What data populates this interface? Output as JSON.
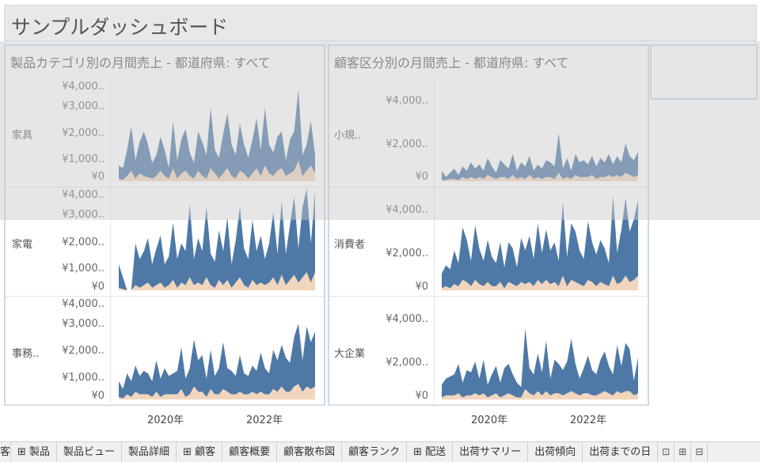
{
  "dashboard": {
    "title": "サンプルダッシュボード"
  },
  "left_panel": {
    "title": "製品カテゴリ別の月間売上 - 都道府県: すべて",
    "rows": [
      {
        "label": "家具",
        "ticks": [
          "¥4,000..",
          "¥3,000..",
          "¥2,000..",
          "¥1,000..",
          "¥0"
        ]
      },
      {
        "label": "家電",
        "ticks": [
          "¥4,000..",
          "¥3,000..",
          "¥2,000..",
          "¥1,000..",
          "¥0"
        ]
      },
      {
        "label": "事務..",
        "ticks": [
          "¥4,000..",
          "¥3,000..",
          "¥2,000..",
          "¥1,000..",
          "¥0"
        ]
      }
    ],
    "x_ticks": [
      "2020年",
      "2022年"
    ]
  },
  "right_panel": {
    "title": "顧客区分別の月間売上 - 都道府県: すべて",
    "rows": [
      {
        "label": "小規..",
        "ticks": [
          "¥4,000..",
          "¥2,000..",
          "¥0"
        ]
      },
      {
        "label": "消費者",
        "ticks": [
          "¥4,000..",
          "¥2,000..",
          "¥0"
        ]
      },
      {
        "label": "大企業",
        "ticks": [
          "¥4,000..",
          "¥2,000..",
          "¥0"
        ]
      }
    ],
    "x_ticks": [
      "2020年",
      "2022年"
    ]
  },
  "colors": {
    "area_blue": "#4e79a7",
    "area_peach": "#f1d5bd",
    "border": "#c9dbe8"
  },
  "tabs": [
    {
      "label": "客",
      "icon": ""
    },
    {
      "label": "製品",
      "icon": "⊞"
    },
    {
      "label": "製品ビュー",
      "icon": ""
    },
    {
      "label": "製品詳細",
      "icon": ""
    },
    {
      "label": "顧客",
      "icon": "⊞"
    },
    {
      "label": "顧客概要",
      "icon": ""
    },
    {
      "label": "顧客散布図",
      "icon": ""
    },
    {
      "label": "顧客ランク",
      "icon": ""
    },
    {
      "label": "配送",
      "icon": "⊞"
    },
    {
      "label": "出荷サマリー",
      "icon": ""
    },
    {
      "label": "出荷傾向",
      "icon": ""
    },
    {
      "label": "出荷までの日",
      "icon": ""
    }
  ],
  "tab_icons": [
    "new-worksheet-icon",
    "new-dashboard-icon",
    "new-story-icon"
  ],
  "chart_data": [
    {
      "type": "area",
      "title": "製品カテゴリ別の月間売上 - 都道府県: すべて",
      "x": [
        "2019-01",
        "2019-02",
        "2019-03",
        "2019-04",
        "2019-05",
        "2019-06",
        "2019-07",
        "2019-08",
        "2019-09",
        "2019-10",
        "2019-11",
        "2019-12",
        "2020-01",
        "2020-02",
        "2020-03",
        "2020-04",
        "2020-05",
        "2020-06",
        "2020-07",
        "2020-08",
        "2020-09",
        "2020-10",
        "2020-11",
        "2020-12",
        "2021-01",
        "2021-02",
        "2021-03",
        "2021-04",
        "2021-05",
        "2021-06",
        "2021-07",
        "2021-08",
        "2021-09",
        "2021-10",
        "2021-11",
        "2021-12",
        "2022-01",
        "2022-02",
        "2022-03",
        "2022-04",
        "2022-05",
        "2022-06",
        "2022-07",
        "2022-08",
        "2022-09",
        "2022-10",
        "2022-11",
        "2022-12"
      ],
      "panels": [
        {
          "name": "家具",
          "series": [
            {
              "name": "",
              "values": [
                600,
                500,
                1200,
                2100,
                800,
                1500,
                1900,
                1400,
                700,
                1000,
                1700,
                1200,
                500,
                2300,
                800,
                1600,
                2000,
                1100,
                700,
                1900,
                1500,
                1000,
                2800,
                1200,
                900,
                1800,
                2600,
                1400,
                1000,
                2200,
                1400,
                900,
                1600,
                2400,
                1200,
                2800,
                1400,
                1100,
                1700,
                1900,
                800,
                1600,
                1900,
                3500,
                1000,
                1400,
                2300,
                1000
              ]
            },
            {
              "name": "",
              "values": [
                100,
                50,
                200,
                400,
                100,
                300,
                200,
                150,
                100,
                200,
                400,
                200,
                100,
                500,
                100,
                300,
                400,
                200,
                100,
                400,
                200,
                100,
                500,
                300,
                100,
                300,
                500,
                200,
                100,
                400,
                300,
                100,
                300,
                500,
                200,
                600,
                300,
                200,
                400,
                500,
                200,
                300,
                400,
                800,
                200,
                400,
                600,
                300
              ]
            }
          ]
        },
        {
          "name": "家電",
          "series": [
            {
              "name": "",
              "values": [
                1000,
                500,
                0,
                0,
                1800,
                1200,
                1500,
                2000,
                1000,
                1600,
                2100,
                1000,
                1300,
                2600,
                1200,
                1800,
                1500,
                3300,
                1200,
                2000,
                1500,
                3200,
                1400,
                1100,
                2300,
                1500,
                2800,
                1000,
                1900,
                3200,
                1600,
                1200,
                2700,
                1500,
                2100,
                1200,
                1800,
                3000,
                1400,
                3400,
                1400,
                2500,
                3600,
                1600,
                3200,
                3900,
                1800,
                3800
              ]
            },
            {
              "name": "",
              "values": [
                100,
                50,
                0,
                0,
                200,
                100,
                200,
                300,
                100,
                200,
                300,
                100,
                200,
                400,
                100,
                300,
                200,
                500,
                200,
                300,
                200,
                500,
                200,
                100,
                400,
                200,
                400,
                100,
                300,
                500,
                200,
                100,
                400,
                200,
                300,
                200,
                300,
                500,
                200,
                600,
                200,
                400,
                600,
                300,
                500,
                700,
                300,
                700
              ]
            }
          ]
        },
        {
          "name": "事務..",
          "series": [
            {
              "name": "",
              "values": [
                700,
                400,
                1000,
                700,
                1300,
                900,
                1100,
                1000,
                700,
                1500,
                800,
                1200,
                900,
                1000,
                1100,
                2000,
                800,
                1200,
                2300,
                1500,
                1700,
                800,
                1900,
                900,
                1200,
                2200,
                1200,
                1100,
                900,
                1700,
                1000,
                900,
                1300,
                1100,
                1800,
                1200,
                1000,
                1900,
                1500,
                2100,
                1600,
                1400,
                2400,
                2900,
                1500,
                2800,
                2200,
                2600
              ]
            },
            {
              "name": "",
              "values": [
                100,
                50,
                200,
                100,
                300,
                200,
                200,
                200,
                100,
                300,
                100,
                200,
                200,
                200,
                200,
                400,
                100,
                200,
                500,
                300,
                300,
                100,
                400,
                200,
                200,
                400,
                300,
                200,
                200,
                300,
                200,
                200,
                300,
                200,
                300,
                200,
                200,
                400,
                300,
                500,
                300,
                300,
                500,
                600,
                300,
                500,
                400,
                500
              ]
            }
          ]
        }
      ]
    },
    {
      "type": "area",
      "title": "顧客区分別の月間売上 - 都道府県: すべて",
      "x": [
        "2019-01",
        "2019-02",
        "2019-03",
        "2019-04",
        "2019-05",
        "2019-06",
        "2019-07",
        "2019-08",
        "2019-09",
        "2019-10",
        "2019-11",
        "2019-12",
        "2020-01",
        "2020-02",
        "2020-03",
        "2020-04",
        "2020-05",
        "2020-06",
        "2020-07",
        "2020-08",
        "2020-09",
        "2020-10",
        "2020-11",
        "2020-12",
        "2021-01",
        "2021-02",
        "2021-03",
        "2021-04",
        "2021-05",
        "2021-06",
        "2021-07",
        "2021-08",
        "2021-09",
        "2021-10",
        "2021-11",
        "2021-12",
        "2022-01",
        "2022-02",
        "2022-03",
        "2022-04",
        "2022-05",
        "2022-06",
        "2022-07",
        "2022-08",
        "2022-09",
        "2022-10",
        "2022-11",
        "2022-12"
      ],
      "panels": [
        {
          "name": "小規..",
          "series": [
            {
              "name": "",
              "values": [
                500,
                200,
                400,
                600,
                300,
                700,
                500,
                900,
                600,
                800,
                500,
                1100,
                700,
                400,
                1000,
                800,
                600,
                1300,
                500,
                900,
                700,
                1200,
                500,
                800,
                600,
                1000,
                900,
                700,
                2300,
                600,
                1100,
                500,
                1300,
                900,
                1000,
                800,
                1200,
                700,
                1100,
                900,
                1300,
                800,
                1200,
                900,
                1800,
                1200,
                1000,
                1400
              ]
            },
            {
              "name": "",
              "values": [
                50,
                50,
                100,
                100,
                50,
                200,
                100,
                200,
                100,
                200,
                100,
                300,
                200,
                100,
                200,
                200,
                100,
                300,
                100,
                200,
                100,
                300,
                100,
                200,
                100,
                200,
                200,
                100,
                400,
                100,
                200,
                100,
                300,
                200,
                200,
                200,
                300,
                100,
                200,
                200,
                300,
                200,
                300,
                200,
                400,
                300,
                200,
                300
              ]
            }
          ]
        },
        {
          "name": "消費者",
          "series": [
            {
              "name": "",
              "values": [
                800,
                1200,
                1000,
                1900,
                1300,
                3000,
                2400,
                1400,
                3100,
                2000,
                1400,
                2400,
                1600,
                1300,
                2300,
                1100,
                2300,
                2000,
                1100,
                2500,
                1900,
                2600,
                1500,
                3200,
                1800,
                2900,
                1900,
                2300,
                1400,
                4200,
                1600,
                3200,
                2800,
                1900,
                1500,
                3300,
                2300,
                1700,
                2400,
                2000,
                1300,
                4500,
                1800,
                2900,
                4400,
                2800,
                3400,
                4300
              ]
            },
            {
              "name": "",
              "values": [
                100,
                200,
                100,
                300,
                200,
                500,
                400,
                200,
                500,
                300,
                200,
                400,
                200,
                200,
                400,
                100,
                400,
                300,
                200,
                400,
                300,
                400,
                200,
                500,
                300,
                500,
                300,
                400,
                200,
                700,
                200,
                500,
                400,
                300,
                200,
                500,
                400,
                200,
                400,
                300,
                200,
                700,
                300,
                400,
                700,
                400,
                500,
                700
              ]
            }
          ]
        },
        {
          "name": "大企業",
          "series": [
            {
              "name": "",
              "values": [
                700,
                1000,
                1100,
                1200,
                1700,
                800,
                1400,
                1300,
                1800,
                1000,
                1900,
                700,
                1200,
                1600,
                800,
                1500,
                1700,
                1200,
                800,
                600,
                3400,
                1500,
                1200,
                2200,
                1300,
                2800,
                1000,
                1900,
                1700,
                1400,
                1800,
                2900,
                1700,
                1000,
                1500,
                2100,
                1400,
                1200,
                1900,
                2300,
                1600,
                1200,
                2600,
                1600,
                2700,
                2400,
                900,
                2000
              ]
            },
            {
              "name": "",
              "values": [
                100,
                200,
                200,
                200,
                300,
                100,
                200,
                200,
                300,
                200,
                300,
                100,
                200,
                300,
                100,
                200,
                300,
                200,
                100,
                100,
                500,
                300,
                200,
                400,
                200,
                400,
                200,
                300,
                300,
                200,
                300,
                400,
                300,
                200,
                300,
                300,
                200,
                200,
                300,
                400,
                300,
                200,
                400,
                300,
                400,
                400,
                200,
                300
              ]
            }
          ]
        }
      ]
    }
  ]
}
